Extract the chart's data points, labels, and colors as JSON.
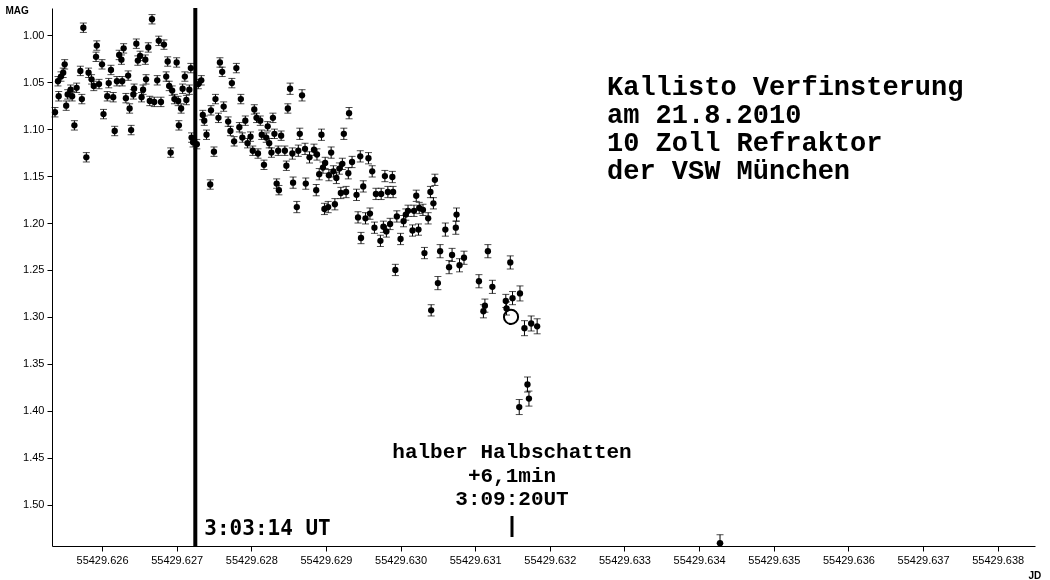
{
  "chart_data": {
    "type": "scatter",
    "title": "Kallisto Verfinsterung\nam 21.8.2010\n10 Zoll Refraktor\nder VSW München",
    "xlabel": "JD",
    "ylabel": "MAG",
    "marker": "circle",
    "xlim": [
      55429.62533,
      55429.6385
    ],
    "xticks": [
      55429.626,
      55429.627,
      55429.628,
      55429.629,
      {
        "value": 55429.63,
        "label": "55429.630"
      },
      55429.631,
      55429.632,
      55429.633,
      55429.634,
      55429.635,
      55429.636,
      55429.637,
      55429.638
    ],
    "ylim": [
      1.544,
      0.971
    ],
    "yticks": [
      {
        "value": 1,
        "label": "1.00"
      },
      1.05,
      {
        "value": 1.1,
        "label": "1.10"
      },
      1.15,
      {
        "value": 1.2,
        "label": "1.20"
      },
      1.25,
      {
        "value": 1.3,
        "label": "1.30"
      },
      1.35,
      {
        "value": 1.4,
        "label": "1.40"
      },
      1.45,
      {
        "value": 1.5,
        "label": "1.50"
      }
    ],
    "series": [
      {
        "color": "#000000",
        "x": [
          55429.62537,
          55429.62541,
          55429.62542,
          55429.62545,
          55429.62548,
          55429.6255,
          55429.62552,
          55429.62554,
          55429.62558,
          55429.6256,
          55429.62563,
          55429.62566,
          55429.62571,
          55429.62573,
          55429.62575,
          55429.62579,
          55429.62582,
          55429.62586,
          55429.62589,
          55429.62592,
          55429.62593,
          55429.62596,
          55429.626,
          55429.62602,
          55429.62607,
          55429.62609,
          55429.62612,
          55429.62615,
          55429.62617,
          55429.6262,
          55429.62623,
          55429.62626,
          55429.62627,
          55429.62629,
          55429.62632,
          55429.62635,
          55429.62637,
          55429.62639,
          55429.62642,
          55429.62643,
          55429.62646,
          55429.62648,
          55429.62651,
          55429.62653,
          55429.62655,
          55429.62658,
          55429.62659,
          55429.62662,
          55429.62664,
          55429.62667,
          55429.6267,
          55429.62674,
          55429.62676,
          55429.62679,
          55429.62683,
          55429.62686,
          55429.62688,
          55429.6269,
          55429.62692,
          55429.62694,
          55429.62697,
          55429.627,
          55429.62702,
          55429.62703,
          55429.62706,
          55429.62708,
          55429.62711,
          55429.62713,
          55429.62717,
          55429.62719,
          55429.6272,
          55429.62722,
          55429.62727,
          55429.62729,
          55429.62733,
          55429.62735,
          55429.62737,
          55429.6274,
          55429.62745,
          55429.62746,
          55429.6275,
          55429.62752,
          55429.62756,
          55429.62758,
          55429.62761,
          55429.62763,
          55429.62769,
          55429.62772,
          55429.62774,
          55429.62777,
          55429.6278,
          55429.62784,
          55429.62786,
          55429.62788,
          55429.62792,
          55429.62795,
          55429.62799,
          55429.62802,
          55429.62804,
          55429.62807,
          55429.62809,
          55429.62812,
          55429.62814,
          55429.62817,
          55429.6282,
          55429.62822,
          55429.62824,
          55429.62827,
          55429.62829,
          55429.62831,
          55429.62834,
          55429.62836,
          55429.62837,
          55429.6284,
          55429.62845,
          55429.62847,
          55429.62849,
          55429.62852,
          55429.62855,
          55429.62856,
          55429.62861,
          55429.62863,
          55429.62865,
          55429.62868,
          55429.62872,
          55429.62873,
          55429.62878,
          55429.62884,
          55429.62887,
          55429.62888,
          55429.62891,
          55429.62894,
          55429.62896,
          55429.62898,
          55429.62899,
          55429.62903,
          55429.62904,
          55429.62907,
          55429.6291,
          55429.62912,
          55429.62914,
          55429.62918,
          55429.6292,
          55429.62922,
          55429.62924,
          55429.62927,
          55429.6293,
          55429.62931,
          55429.62935,
          55429.62941,
          55429.62943,
          55429.62946,
          55429.62947,
          55429.6295,
          55429.62953,
          55429.62957,
          55429.62959,
          55429.62962,
          55429.62965,
          55429.62967,
          55429.62973,
          55429.62974,
          55429.62977,
          55429.62979,
          55429.62981,
          55429.62983,
          55429.62986,
          55429.62989,
          55429.6299,
          55429.62993,
          55429.62995,
          55429.63,
          55429.63004,
          55429.63007,
          55429.6301,
          55429.63016,
          55429.63018,
          55429.63021,
          55429.63024,
          55429.63025,
          55429.6303,
          55429.63032,
          55429.63037,
          55429.6304,
          55429.63041,
          55429.63044,
          55429.63046,
          55429.6305,
          55429.63053,
          55429.6306,
          55429.63065,
          55429.63069,
          55429.63074,
          55429.63075,
          55429.63079,
          55429.63085,
          55429.63105,
          55429.63111,
          55429.63113,
          55429.63117,
          55429.63123,
          55429.63141,
          55429.63142,
          55429.63147,
          55429.6315,
          55429.63159,
          55429.6316,
          55429.63166,
          55429.6317,
          55429.63172,
          55429.63175,
          55429.63183,
          55429.63428
        ],
        "values": [
          1.082,
          1.049,
          1.065,
          1.044,
          1.04,
          1.031,
          1.075,
          1.063,
          1.058,
          1.065,
          1.096,
          1.056,
          1.038,
          1.068,
          0.992,
          1.13,
          1.04,
          1.047,
          1.054,
          1.023,
          1.011,
          1.052,
          1.031,
          1.084,
          1.065,
          1.051,
          1.037,
          1.066,
          1.102,
          1.049,
          1.021,
          1.026,
          1.049,
          1.014,
          1.067,
          1.043,
          1.078,
          1.101,
          1.063,
          1.057,
          1.009,
          1.027,
          1.022,
          1.066,
          1.058,
          1.026,
          1.047,
          1.013,
          1.07,
          0.983,
          1.071,
          1.048,
          1.006,
          1.071,
          1.01,
          1.044,
          1.028,
          1.054,
          1.125,
          1.059,
          1.068,
          1.029,
          1.07,
          1.096,
          1.078,
          1.057,
          1.044,
          1.069,
          1.058,
          1.035,
          1.109,
          1.114,
          1.116,
          1.052,
          1.048,
          1.085,
          1.091,
          1.106,
          1.159,
          1.08,
          1.124,
          1.068,
          1.088,
          1.029,
          1.039,
          1.076,
          1.092,
          1.102,
          1.051,
          1.113,
          1.035,
          1.098,
          1.068,
          1.109,
          1.091,
          1.115,
          1.108,
          1.123,
          1.079,
          1.088,
          1.126,
          1.091,
          1.106,
          1.138,
          1.109,
          1.097,
          1.115,
          1.125,
          1.088,
          1.105,
          1.158,
          1.123,
          1.165,
          1.107,
          1.123,
          1.139,
          1.078,
          1.057,
          1.126,
          1.157,
          1.183,
          1.123,
          1.105,
          1.064,
          1.121,
          1.158,
          1.13,
          1.122,
          1.165,
          1.127,
          1.148,
          1.106,
          1.141,
          1.185,
          1.136,
          1.183,
          1.149,
          1.125,
          1.145,
          1.18,
          1.152,
          1.142,
          1.168,
          1.137,
          1.105,
          1.167,
          1.147,
          1.083,
          1.135,
          1.17,
          1.194,
          1.129,
          1.216,
          1.161,
          1.195,
          1.131,
          1.19,
          1.145,
          1.205,
          1.169,
          1.219,
          1.169,
          1.204,
          1.15,
          1.209,
          1.167,
          1.201,
          1.151,
          1.167,
          1.25,
          1.193,
          1.217,
          1.198,
          1.191,
          1.187,
          1.208,
          1.187,
          1.171,
          1.207,
          1.184,
          1.186,
          1.232,
          1.195,
          1.167,
          1.293,
          1.179,
          1.154,
          1.264,
          1.23,
          1.207,
          1.247,
          1.234,
          1.205,
          1.191,
          1.245,
          1.237,
          1.262,
          1.294,
          1.288,
          1.23,
          1.268,
          1.283,
          1.291,
          1.242,
          1.28,
          1.396,
          1.275,
          1.312,
          1.372,
          1.387,
          1.307,
          1.31,
          1.541
        ],
        "errors": [
          0.005,
          0.005,
          0.005,
          0.005,
          0.005,
          0.005,
          0.005,
          0.005,
          0.005,
          0.005,
          0.005,
          0.005,
          0.005,
          0.005,
          0.005,
          0.005,
          0.005,
          0.005,
          0.005,
          0.005,
          0.005,
          0.005,
          0.005,
          0.005,
          0.005,
          0.005,
          0.005,
          0.005,
          0.005,
          0.005,
          0.005,
          0.005,
          0.005,
          0.005,
          0.005,
          0.005,
          0.005,
          0.005,
          0.005,
          0.005,
          0.005,
          0.005,
          0.005,
          0.005,
          0.005,
          0.005,
          0.005,
          0.005,
          0.005,
          0.005,
          0.005,
          0.005,
          0.005,
          0.005,
          0.005,
          0.005,
          0.005,
          0.005,
          0.005,
          0.005,
          0.005,
          0.005,
          0.005,
          0.005,
          0.005,
          0.005,
          0.005,
          0.005,
          0.005,
          0.005,
          0.005,
          0.005,
          0.005,
          0.005,
          0.005,
          0.005,
          0.005,
          0.005,
          0.005,
          0.005,
          0.005,
          0.005,
          0.005,
          0.005,
          0.005,
          0.005,
          0.005,
          0.005,
          0.005,
          0.005,
          0.005,
          0.005,
          0.005,
          0.005,
          0.005,
          0.005,
          0.005,
          0.005,
          0.005,
          0.005,
          0.005,
          0.005,
          0.005,
          0.005,
          0.005,
          0.005,
          0.005,
          0.005,
          0.005,
          0.005,
          0.005,
          0.005,
          0.005,
          0.005,
          0.005,
          0.005,
          0.005,
          0.006,
          0.006,
          0.006,
          0.006,
          0.006,
          0.006,
          0.006,
          0.006,
          0.006,
          0.006,
          0.006,
          0.006,
          0.006,
          0.006,
          0.006,
          0.006,
          0.006,
          0.006,
          0.006,
          0.006,
          0.006,
          0.006,
          0.006,
          0.006,
          0.006,
          0.006,
          0.006,
          0.006,
          0.006,
          0.006,
          0.006,
          0.006,
          0.006,
          0.006,
          0.006,
          0.006,
          0.006,
          0.006,
          0.006,
          0.006,
          0.006,
          0.006,
          0.006,
          0.006,
          0.006,
          0.006,
          0.006,
          0.006,
          0.006,
          0.006,
          0.006,
          0.006,
          0.006,
          0.006,
          0.006,
          0.006,
          0.006,
          0.006,
          0.006,
          0.006,
          0.006,
          0.006,
          0.006,
          0.006,
          0.006,
          0.006,
          0.006,
          0.006,
          0.006,
          0.006,
          0.007,
          0.007,
          0.007,
          0.007,
          0.007,
          0.007,
          0.007,
          0.007,
          0.007,
          0.007,
          0.007,
          0.007,
          0.007,
          0.007,
          0.007,
          0.007,
          0.007,
          0.007,
          0.008,
          0.008,
          0.008,
          0.008,
          0.008,
          0.008,
          0.008,
          [
            1.532,
            1.541
          ]
        ]
      },
      {
        "color": "#000000",
        "marker": "circle",
        "x": [
          55429.63148
        ],
        "values": [
          1.3
        ]
      }
    ],
    "ref_lines": [
      {
        "axis": "x",
        "value": 55429.62725
      }
    ],
    "annotations": [
      {
        "text": "3:03:14 UT",
        "x": 55429.62725,
        "y": 1.526
      },
      "halber Halbschatten\n+6,1min\n3:09:20UT"
    ]
  }
}
